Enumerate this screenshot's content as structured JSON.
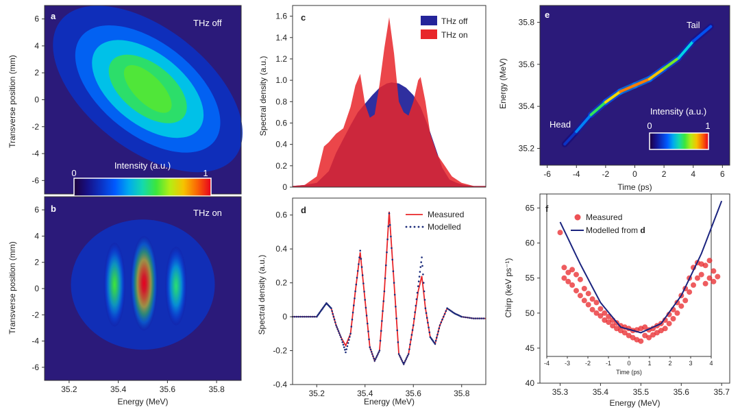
{
  "chart_data": [
    {
      "panel": "a",
      "type": "heatmap",
      "annotation": "THz off",
      "xlabel": "Energy (MeV)",
      "ylabel": "Transverse position (mm)",
      "xlim": [
        35.1,
        35.9
      ],
      "ylim": [
        -7,
        7
      ],
      "yticks": [
        "-6",
        "-4",
        "-2",
        "0",
        "2",
        "4",
        "6"
      ],
      "colorbar": {
        "label": "Intensity (a.u.)",
        "min_label": "0",
        "max_label": "1"
      },
      "blobs": [
        {
          "x": 35.52,
          "y": 0.8,
          "sx": 0.11,
          "sy": 2.4,
          "tilt": -0.4,
          "amp": 0.55
        }
      ]
    },
    {
      "panel": "b",
      "type": "heatmap",
      "annotation": "THz on",
      "xlabel": "Energy (MeV)",
      "ylabel": "Transverse position (mm)",
      "xlim": [
        35.1,
        35.9
      ],
      "ylim": [
        -7,
        7
      ],
      "xticks": [
        "35.2",
        "35.4",
        "35.6",
        "35.8"
      ],
      "yticks": [
        "-6",
        "-4",
        "-2",
        "0",
        "2",
        "4",
        "6"
      ],
      "blobs": [
        {
          "x": 35.385,
          "y": 0.3,
          "sx": 0.02,
          "sy": 3.2,
          "amp": 0.6
        },
        {
          "x": 35.505,
          "y": 0.4,
          "sx": 0.025,
          "sy": 3.6,
          "amp": 1.0
        },
        {
          "x": 35.635,
          "y": 0.2,
          "sx": 0.02,
          "sy": 3.0,
          "amp": 0.55
        }
      ]
    },
    {
      "panel": "c",
      "type": "area",
      "ylabel": "Spectral density (a.u.)",
      "xlim": [
        35.1,
        35.9
      ],
      "ylim": [
        0,
        1.7
      ],
      "yticks": [
        "0",
        "0.2",
        "0.4",
        "0.6",
        "0.8",
        "1.0",
        "1.2",
        "1.4",
        "1.6"
      ],
      "legend_position": "top-right",
      "series": [
        {
          "name": "THz off",
          "color": "#24249a",
          "x": [
            35.1,
            35.15,
            35.2,
            35.25,
            35.28,
            35.31,
            35.34,
            35.37,
            35.4,
            35.43,
            35.46,
            35.49,
            35.51,
            35.54,
            35.57,
            35.6,
            35.63,
            35.66,
            35.69,
            35.72,
            35.75,
            35.78,
            35.81,
            35.85,
            35.9
          ],
          "y": [
            0.01,
            0.02,
            0.04,
            0.15,
            0.32,
            0.45,
            0.58,
            0.7,
            0.78,
            0.86,
            0.93,
            0.97,
            0.98,
            0.97,
            0.93,
            0.86,
            0.75,
            0.58,
            0.38,
            0.18,
            0.07,
            0.04,
            0.02,
            0.01,
            0.01
          ]
        },
        {
          "name": "THz on",
          "color": "#e8262a",
          "x": [
            35.1,
            35.15,
            35.2,
            35.23,
            35.25,
            35.28,
            35.31,
            35.34,
            35.36,
            35.38,
            35.4,
            35.42,
            35.44,
            35.46,
            35.48,
            35.5,
            35.52,
            35.54,
            35.56,
            35.58,
            35.6,
            35.62,
            35.63,
            35.65,
            35.67,
            35.7,
            35.73,
            35.76,
            35.8,
            35.85,
            35.9
          ],
          "y": [
            0.01,
            0.02,
            0.1,
            0.38,
            0.42,
            0.5,
            0.55,
            0.75,
            0.95,
            1.06,
            0.78,
            0.65,
            0.68,
            0.96,
            1.3,
            1.59,
            1.25,
            0.8,
            0.7,
            0.67,
            0.8,
            1.0,
            1.03,
            0.8,
            0.5,
            0.3,
            0.2,
            0.1,
            0.04,
            0.01,
            0.01
          ]
        }
      ]
    },
    {
      "panel": "d",
      "type": "line",
      "xlabel": "Energy (MeV)",
      "ylabel": "Spectral density (a.u.)",
      "xlim": [
        35.1,
        35.9
      ],
      "ylim": [
        -0.4,
        0.7
      ],
      "xticks": [
        "35.2",
        "35.4",
        "35.6",
        "35.8"
      ],
      "yticks": [
        "-0.4",
        "-0.2",
        "0",
        "0.2",
        "0.4",
        "0.6"
      ],
      "legend_position": "top-right",
      "series": [
        {
          "name": "Measured",
          "color": "#e8262a",
          "style": "solid",
          "x": [
            35.1,
            35.15,
            35.2,
            35.22,
            35.24,
            35.26,
            35.28,
            35.3,
            35.32,
            35.34,
            35.36,
            35.38,
            35.4,
            35.42,
            35.44,
            35.46,
            35.48,
            35.5,
            35.52,
            35.54,
            35.56,
            35.58,
            35.6,
            35.62,
            35.635,
            35.65,
            35.67,
            35.69,
            35.71,
            35.74,
            35.77,
            35.8,
            35.85,
            35.9
          ],
          "y": [
            0,
            0,
            0,
            0.04,
            0.08,
            0.05,
            -0.05,
            -0.12,
            -0.17,
            -0.1,
            0.15,
            0.38,
            0.1,
            -0.18,
            -0.26,
            -0.2,
            0.15,
            0.62,
            0.2,
            -0.22,
            -0.28,
            -0.22,
            -0.05,
            0.15,
            0.24,
            0.05,
            -0.12,
            -0.16,
            -0.05,
            0.05,
            0.02,
            0,
            -0.01,
            -0.01
          ]
        },
        {
          "name": "Modelled",
          "color": "#1a2a7a",
          "style": "dotted",
          "x": [
            35.1,
            35.15,
            35.2,
            35.22,
            35.24,
            35.26,
            35.28,
            35.3,
            35.32,
            35.34,
            35.36,
            35.38,
            35.4,
            35.42,
            35.44,
            35.46,
            35.48,
            35.5,
            35.52,
            35.54,
            35.56,
            35.58,
            35.6,
            35.62,
            35.635,
            35.65,
            35.67,
            35.69,
            35.71,
            35.74,
            35.77,
            35.8,
            35.85,
            35.9
          ],
          "y": [
            0,
            0,
            0,
            0.04,
            0.08,
            0.05,
            -0.05,
            -0.12,
            -0.21,
            -0.1,
            0.15,
            0.39,
            0.1,
            -0.18,
            -0.26,
            -0.2,
            0.15,
            0.61,
            0.2,
            -0.22,
            -0.28,
            -0.22,
            -0.05,
            0.18,
            0.35,
            0.05,
            -0.12,
            -0.16,
            -0.05,
            0.05,
            0.02,
            0,
            -0.01,
            -0.01
          ]
        }
      ]
    },
    {
      "panel": "e",
      "type": "heatmap",
      "xlabel": "Time (ps)",
      "ylabel": "Energy (MeV)",
      "xlim": [
        -6.5,
        6.5
      ],
      "ylim": [
        35.12,
        35.88
      ],
      "xticks": [
        "-6",
        "-4",
        "-2",
        "0",
        "2",
        "4",
        "6"
      ],
      "yticks": [
        "35.2",
        "35.4",
        "35.6",
        "35.8"
      ],
      "annotations": [
        "Head",
        "Tail"
      ],
      "colorbar": {
        "label": "Intensity (a.u.)",
        "min_label": "0",
        "max_label": "1"
      },
      "trace": {
        "t": [
          -4.8,
          -4.0,
          -3.0,
          -2.0,
          -1.0,
          0.0,
          1.0,
          2.0,
          3.0,
          4.0,
          5.2
        ],
        "e": [
          35.22,
          35.28,
          35.36,
          35.42,
          35.47,
          35.5,
          35.53,
          35.58,
          35.63,
          35.71,
          35.78
        ],
        "intensity": [
          0.15,
          0.25,
          0.45,
          0.7,
          0.85,
          0.9,
          0.85,
          0.75,
          0.55,
          0.35,
          0.2
        ]
      }
    },
    {
      "panel": "f",
      "type": "scatter",
      "xlabel": "Energy (MeV)",
      "ylabel": "Chirp (keV ps⁻¹)",
      "xlim": [
        35.25,
        35.72
      ],
      "ylim": [
        40,
        67
      ],
      "xticks": [
        "35.3",
        "35.4",
        "35.5",
        "35.6",
        "35.7"
      ],
      "yticks": [
        "40",
        "45",
        "50",
        "55",
        "60",
        "65"
      ],
      "secondary_xlabel": "Time (ps)",
      "secondary_xlim": [
        -4.0,
        4.0
      ],
      "secondary_xticks": [
        "-4",
        "-3",
        "-2",
        "-1",
        "0",
        "1",
        "2",
        "3",
        "4"
      ],
      "legend_position": "top-left",
      "series": [
        {
          "name": "Measured",
          "color": "#e8262a",
          "x": [
            35.3,
            35.31,
            35.31,
            35.32,
            35.32,
            35.33,
            35.33,
            35.34,
            35.34,
            35.35,
            35.35,
            35.36,
            35.36,
            35.37,
            35.37,
            35.38,
            35.38,
            35.39,
            35.39,
            35.4,
            35.4,
            35.41,
            35.41,
            35.42,
            35.42,
            35.43,
            35.43,
            35.44,
            35.44,
            35.45,
            35.45,
            35.46,
            35.46,
            35.47,
            35.47,
            35.48,
            35.48,
            35.49,
            35.49,
            35.5,
            35.5,
            35.51,
            35.51,
            35.52,
            35.52,
            35.53,
            35.53,
            35.54,
            35.54,
            35.55,
            35.55,
            35.56,
            35.56,
            35.57,
            35.57,
            35.58,
            35.58,
            35.59,
            35.59,
            35.6,
            35.6,
            35.61,
            35.61,
            35.62,
            35.62,
            35.63,
            35.63,
            35.64,
            35.64,
            35.65,
            35.65,
            35.66,
            35.66,
            35.67,
            35.67,
            35.68,
            35.68,
            35.69
          ],
          "y": [
            61.5,
            56.5,
            55.0,
            55.8,
            54.5,
            56.2,
            54.0,
            55.5,
            53.2,
            54.8,
            52.5,
            53.5,
            51.8,
            52.8,
            51.2,
            52.0,
            50.5,
            51.5,
            50.0,
            50.6,
            49.6,
            50.0,
            49.0,
            49.5,
            48.7,
            49.0,
            48.2,
            48.6,
            47.8,
            48.2,
            47.5,
            48.0,
            47.2,
            47.8,
            46.8,
            47.5,
            46.5,
            47.6,
            46.2,
            47.8,
            46.0,
            48.0,
            46.8,
            47.6,
            46.5,
            47.8,
            46.9,
            48.2,
            47.2,
            48.5,
            47.5,
            49.0,
            47.8,
            49.8,
            48.5,
            50.5,
            49.2,
            51.5,
            50.0,
            52.5,
            51.0,
            53.5,
            51.8,
            55.0,
            53.0,
            56.5,
            54.0,
            57.2,
            55.0,
            57.0,
            55.5,
            56.8,
            54.2,
            57.5,
            55.0,
            56.0,
            54.5,
            55.2
          ]
        },
        {
          "name": "Modelled from d",
          "color": "#1a237e",
          "x": [
            35.3,
            35.35,
            35.4,
            35.45,
            35.5,
            35.55,
            35.6,
            35.65,
            35.7
          ],
          "y": [
            63.0,
            57.0,
            51.5,
            48.0,
            47.2,
            48.5,
            52.5,
            58.5,
            66.0
          ]
        }
      ]
    }
  ]
}
